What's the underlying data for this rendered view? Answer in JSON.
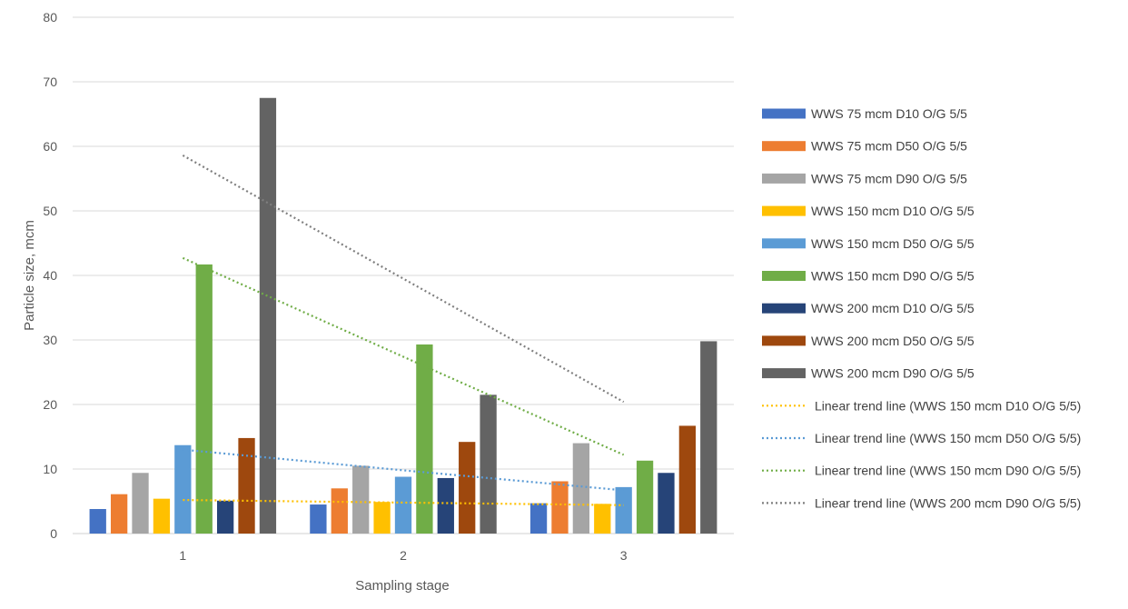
{
  "chart_data": {
    "type": "bar",
    "title": "",
    "xlabel": "Sampling stage",
    "ylabel": "Particle size, mcm",
    "categories": [
      "1",
      "2",
      "3"
    ],
    "ylim": [
      0,
      80
    ],
    "yticks": [
      0,
      10,
      20,
      30,
      40,
      50,
      60,
      70,
      80
    ],
    "grid": true,
    "legend_position": "right",
    "series": [
      {
        "name": "WWS 75 mcm D10 O/G 5/5",
        "color": "#4472C4",
        "values": [
          3.8,
          4.5,
          4.7
        ]
      },
      {
        "name": "WWS 75 mcm D50 O/G 5/5",
        "color": "#ED7D31",
        "values": [
          6.1,
          7.0,
          8.1
        ]
      },
      {
        "name": "WWS 75 mcm D90 O/G 5/5",
        "color": "#A5A5A5",
        "values": [
          9.4,
          10.5,
          14.0
        ]
      },
      {
        "name": "WWS 150 mcm D10 O/G 5/5",
        "color": "#FFC000",
        "values": [
          5.4,
          4.9,
          4.6
        ]
      },
      {
        "name": "WWS 150 mcm D50 O/G 5/5",
        "color": "#5B9BD5",
        "values": [
          13.7,
          8.8,
          7.2
        ]
      },
      {
        "name": "WWS 150 mcm D90 O/G 5/5",
        "color": "#70AD47",
        "values": [
          41.7,
          29.3,
          11.3
        ]
      },
      {
        "name": "WWS 200 mcm D10 O/G 5/5",
        "color": "#264478",
        "values": [
          5.1,
          8.6,
          9.4
        ]
      },
      {
        "name": "WWS 200 mcm D50 O/G 5/5",
        "color": "#9E480E",
        "values": [
          14.8,
          14.2,
          16.7
        ]
      },
      {
        "name": "WWS 200 mcm D90 O/G 5/5",
        "color": "#636363",
        "values": [
          67.5,
          21.5,
          29.8
        ]
      }
    ],
    "trendlines": [
      {
        "name": "Linear trend line (WWS 150 mcm D10 O/G 5/5)",
        "color": "#FFC000",
        "values": [
          5.2,
          4.8,
          4.4
        ]
      },
      {
        "name": "Linear trend line (WWS 150 mcm D50 O/G 5/5)",
        "color": "#5B9BD5",
        "values": [
          13.0,
          9.8,
          6.7
        ]
      },
      {
        "name": "Linear trend line (WWS 150 mcm D90 O/G 5/5)",
        "color": "#70AD47",
        "values": [
          42.7,
          27.4,
          12.2
        ]
      },
      {
        "name": "Linear trend line (WWS 200 mcm D90 O/G 5/5)",
        "color": "#7F7F7F",
        "values": [
          58.6,
          39.5,
          20.4
        ]
      }
    ]
  }
}
